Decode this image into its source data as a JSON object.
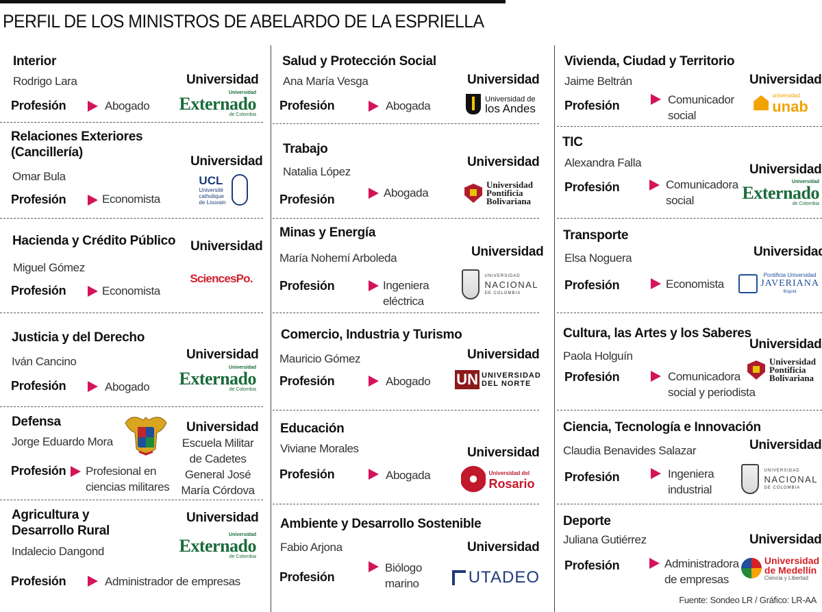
{
  "title": "PERFIL DE LOS MINISTROS DE ABELARDO DE LA ESPRIELLA",
  "labels": {
    "profession": "Profesión",
    "university": "Universidad"
  },
  "source": "Fuente: Sondeo LR / Gráfico: LR-AA",
  "col1": [
    {
      "category": "Interior",
      "name": "Rodrigo Lara",
      "profession": "Abogado",
      "university_logo": "Externado de Colombia"
    },
    {
      "category": "Relaciones Exteriores\n(Cancillería)",
      "name": "Omar Bula",
      "profession": "Economista",
      "university_logo": "UCL Université catholique de Louvain"
    },
    {
      "category": "Hacienda y Crédito Público",
      "name": "Miguel Gómez",
      "profession": "Economista",
      "university_logo": "SciencesPo."
    },
    {
      "category": "Justicia y del Derecho",
      "name": "Iván Cancino",
      "profession": "Abogado",
      "university_logo": "Externado de Colombia"
    },
    {
      "category": "Defensa",
      "name": "Jorge Eduardo Mora",
      "profession": "Profesional en\nciencias militares",
      "university_text": "Escuela Militar\nde Cadetes\nGeneral José\nMaría Córdova"
    },
    {
      "category": "Agricultura y\nDesarrollo Rural",
      "name": "Indalecio Dangond",
      "profession": "Administrador de empresas",
      "university_logo": "Externado de Colombia"
    }
  ],
  "col2": [
    {
      "category": "Salud y Protección Social",
      "name": "Ana María Vesga",
      "profession": "Abogada",
      "university_logo": "Universidad de los Andes"
    },
    {
      "category": "Trabajo",
      "name": "Natalia López",
      "profession": "Abogada",
      "university_logo": "Universidad Pontificia Bolivariana"
    },
    {
      "category": "Minas y Energía",
      "name": "María Nohemí Arboleda",
      "profession": "Ingeniera\neléctrica",
      "university_logo": "Universidad Nacional de Colombia"
    },
    {
      "category": "Comercio, Industria y Turismo",
      "name": "Mauricio Gómez",
      "profession": "Abogado",
      "university_logo": "Universidad del Norte"
    },
    {
      "category": "Educación",
      "name": "Viviane Morales",
      "profession": "Abogada",
      "university_logo": "Universidad del Rosario"
    },
    {
      "category": "Ambiente y Desarrollo Sostenible",
      "name": "Fabio Arjona",
      "profession": "Biólogo\nmarino",
      "university_logo": "UTADEO"
    }
  ],
  "col3": [
    {
      "category": "Vivienda, Ciudad y Territorio",
      "name": "Jaime Beltrán",
      "profession": "Comunicador\nsocial",
      "university_logo": "Universidad UNAB"
    },
    {
      "category": "TIC",
      "name": "Alexandra Falla",
      "profession": "Comunicadora\nsocial",
      "university_logo": "Externado de Colombia"
    },
    {
      "category": "Transporte",
      "name": "Elsa Noguera",
      "profession": "Economista",
      "university_logo": "Pontificia Universidad Javeriana"
    },
    {
      "category": "Cultura, las Artes y los Saberes",
      "name": "Paola Holguín",
      "profession": "Comunicadora\nsocial y periodista",
      "university_logo": "Universidad Pontificia Bolivariana"
    },
    {
      "category": "Ciencia, Tecnología e Innovación",
      "name": "Claudia Benavides Salazar",
      "profession": "Ingeniera\nindustrial",
      "university_logo": "Universidad Nacional de Colombia"
    },
    {
      "category": "Deporte",
      "name": "Juliana Gutiérrez",
      "profession": "Administradora\nde empresas",
      "university_logo": "Universidad de Medellín"
    }
  ],
  "logo_text": {
    "externado": {
      "small": "Universidad",
      "big": "Externado",
      "sub": "de Colombia"
    },
    "andes": {
      "t1": "Universidad de",
      "t2": "los Andes"
    },
    "ucl": {
      "t1": "UCL",
      "t2": "Université\ncatholique\nde Louvain"
    },
    "sciences": "SciencesPo.",
    "upb": {
      "t1": "Universidad",
      "t2": "Pontificia",
      "t3": "Bolivariana"
    },
    "unal": {
      "t1": "UNIVERSIDAD",
      "t2": "NACIONAL",
      "t3": "DE COLOMBIA"
    },
    "uninorte": {
      "mark": "UN",
      "t1": "UNIVERSIDAD",
      "t2": "DEL NORTE"
    },
    "rosario": {
      "t1": "Universidad del",
      "t2": "Rosario"
    },
    "utadeo": "UTADEO",
    "unab": {
      "t1": "universidad",
      "t2": "unab"
    },
    "javeriana": {
      "t1": "Pontificia Universidad",
      "t2": "JAVERIANA",
      "t3": "Bogotá"
    },
    "medellin": {
      "t1": "Universidad",
      "t2": "de Medellín",
      "t3": "Ciencia y Libertad"
    }
  }
}
